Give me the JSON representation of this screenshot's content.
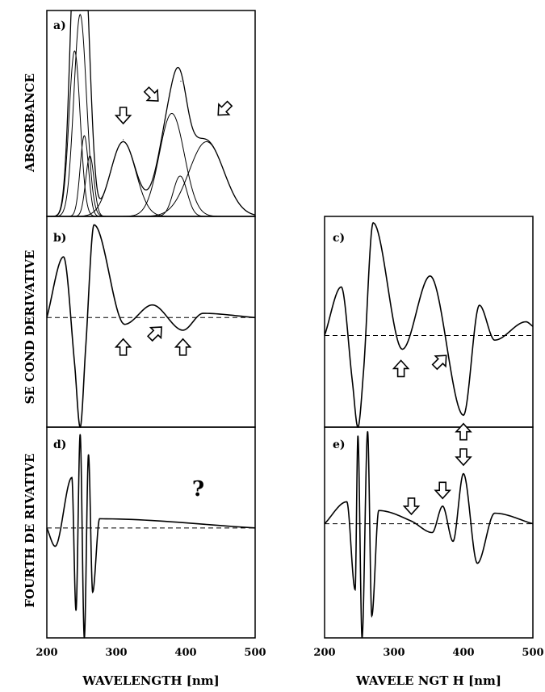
{
  "figure": {
    "y_labels": {
      "absorbance": "ABSORBANCE",
      "second": "SE COND DERIVATIVE",
      "fourth": "FOURTH DE RIVATIVE"
    },
    "x_labels": {
      "left": "WAVELENGTH [nm]",
      "right": "WAVELE NGT H [nm]"
    },
    "question_mark": "?"
  },
  "chart_data": [
    {
      "id": "a",
      "type": "line",
      "panel_label": "a)",
      "xlim": [
        200,
        500
      ],
      "ylim": [
        0,
        1.02
      ],
      "component_bands": [
        {
          "center": 240,
          "amplitude": 0.82,
          "width": 8
        },
        {
          "center": 248,
          "amplitude": 1.0,
          "width": 9
        },
        {
          "center": 254,
          "amplitude": 0.4,
          "width": 6
        },
        {
          "center": 262,
          "amplitude": 0.3,
          "width": 6
        },
        {
          "center": 310,
          "amplitude": 0.37,
          "width": 18
        },
        {
          "center": 380,
          "amplitude": 0.51,
          "width": 18
        },
        {
          "center": 392,
          "amplitude": 0.2,
          "width": 10
        },
        {
          "center": 430,
          "amplitude": 0.37,
          "width": 25
        }
      ],
      "envelope_peaks": [
        {
          "x": 248,
          "y": 1.0
        },
        {
          "x": 310,
          "y": 0.38
        },
        {
          "x": 393,
          "y": 0.67
        }
      ],
      "arrows": [
        {
          "x": 310,
          "y": 0.5,
          "direction": "down"
        },
        {
          "x": 352,
          "y": 0.6,
          "direction": "down-right"
        },
        {
          "x": 455,
          "y": 0.53,
          "direction": "down-left"
        }
      ]
    },
    {
      "id": "b",
      "type": "line",
      "panel_label": "b)",
      "xlim": [
        200,
        500
      ],
      "ylim": [
        -1.3,
        1.2
      ],
      "baseline": 0,
      "extrema": [
        {
          "x": 224,
          "y": 0.72
        },
        {
          "x": 240,
          "y": -0.55
        },
        {
          "x": 248,
          "y": -1.3
        },
        {
          "x": 256,
          "y": -0.35
        },
        {
          "x": 268,
          "y": 1.1
        },
        {
          "x": 312,
          "y": -0.08
        },
        {
          "x": 352,
          "y": 0.15
        },
        {
          "x": 396,
          "y": -0.15
        },
        {
          "x": 425,
          "y": 0.05
        }
      ],
      "arrows": [
        {
          "x": 310,
          "y": -0.35,
          "direction": "up"
        },
        {
          "x": 357,
          "y": -0.18,
          "direction": "up-right"
        },
        {
          "x": 396,
          "y": -0.35,
          "direction": "up"
        }
      ]
    },
    {
      "id": "c",
      "type": "line",
      "panel_label": "c)",
      "xlim": [
        200,
        500
      ],
      "ylim": [
        -1.0,
        1.3
      ],
      "baseline": 0,
      "extrema": [
        {
          "x": 224,
          "y": 0.53
        },
        {
          "x": 240,
          "y": -0.5
        },
        {
          "x": 248,
          "y": -1.0
        },
        {
          "x": 256,
          "y": -0.4
        },
        {
          "x": 270,
          "y": 1.23
        },
        {
          "x": 312,
          "y": -0.15
        },
        {
          "x": 352,
          "y": 0.65
        },
        {
          "x": 400,
          "y": -0.87
        },
        {
          "x": 423,
          "y": 0.33
        },
        {
          "x": 445,
          "y": -0.05
        },
        {
          "x": 490,
          "y": 0.15
        }
      ],
      "arrows": [
        {
          "x": 310,
          "y": -0.36,
          "direction": "up"
        },
        {
          "x": 367,
          "y": -0.28,
          "direction": "up-right"
        },
        {
          "x": 400,
          "y": -1.05,
          "direction": "up"
        }
      ]
    },
    {
      "id": "d",
      "type": "line",
      "panel_label": "d)",
      "xlim": [
        200,
        500
      ],
      "ylim": [
        -1.2,
        1.1
      ],
      "baseline": 0,
      "extrema": [
        {
          "x": 212,
          "y": -0.2
        },
        {
          "x": 236,
          "y": 0.55
        },
        {
          "x": 242,
          "y": -0.9
        },
        {
          "x": 248,
          "y": 1.02
        },
        {
          "x": 254,
          "y": -1.2
        },
        {
          "x": 260,
          "y": 0.8
        },
        {
          "x": 266,
          "y": -0.7
        },
        {
          "x": 276,
          "y": 0.1
        }
      ],
      "note": "?"
    },
    {
      "id": "e",
      "type": "line",
      "panel_label": "e)",
      "xlim": [
        200,
        500
      ],
      "ylim": [
        -1.3,
        1.1
      ],
      "baseline": 0,
      "extrema": [
        {
          "x": 232,
          "y": 0.25
        },
        {
          "x": 244,
          "y": -0.75
        },
        {
          "x": 248,
          "y": 1.0
        },
        {
          "x": 254,
          "y": -1.3
        },
        {
          "x": 262,
          "y": 1.05
        },
        {
          "x": 268,
          "y": -1.05
        },
        {
          "x": 278,
          "y": 0.15
        },
        {
          "x": 325,
          "y": 0.03
        },
        {
          "x": 355,
          "y": -0.1
        },
        {
          "x": 370,
          "y": 0.2
        },
        {
          "x": 385,
          "y": -0.2
        },
        {
          "x": 400,
          "y": 0.57
        },
        {
          "x": 420,
          "y": -0.45
        },
        {
          "x": 445,
          "y": 0.12
        }
      ],
      "arrows": [
        {
          "x": 325,
          "y": 0.2,
          "direction": "down"
        },
        {
          "x": 370,
          "y": 0.38,
          "direction": "down"
        },
        {
          "x": 400,
          "y": 0.76,
          "direction": "down"
        }
      ]
    }
  ],
  "x_axis": {
    "ticks": [
      "200",
      "300",
      "400",
      "500"
    ],
    "tick_values": [
      200,
      300,
      400,
      500
    ]
  }
}
